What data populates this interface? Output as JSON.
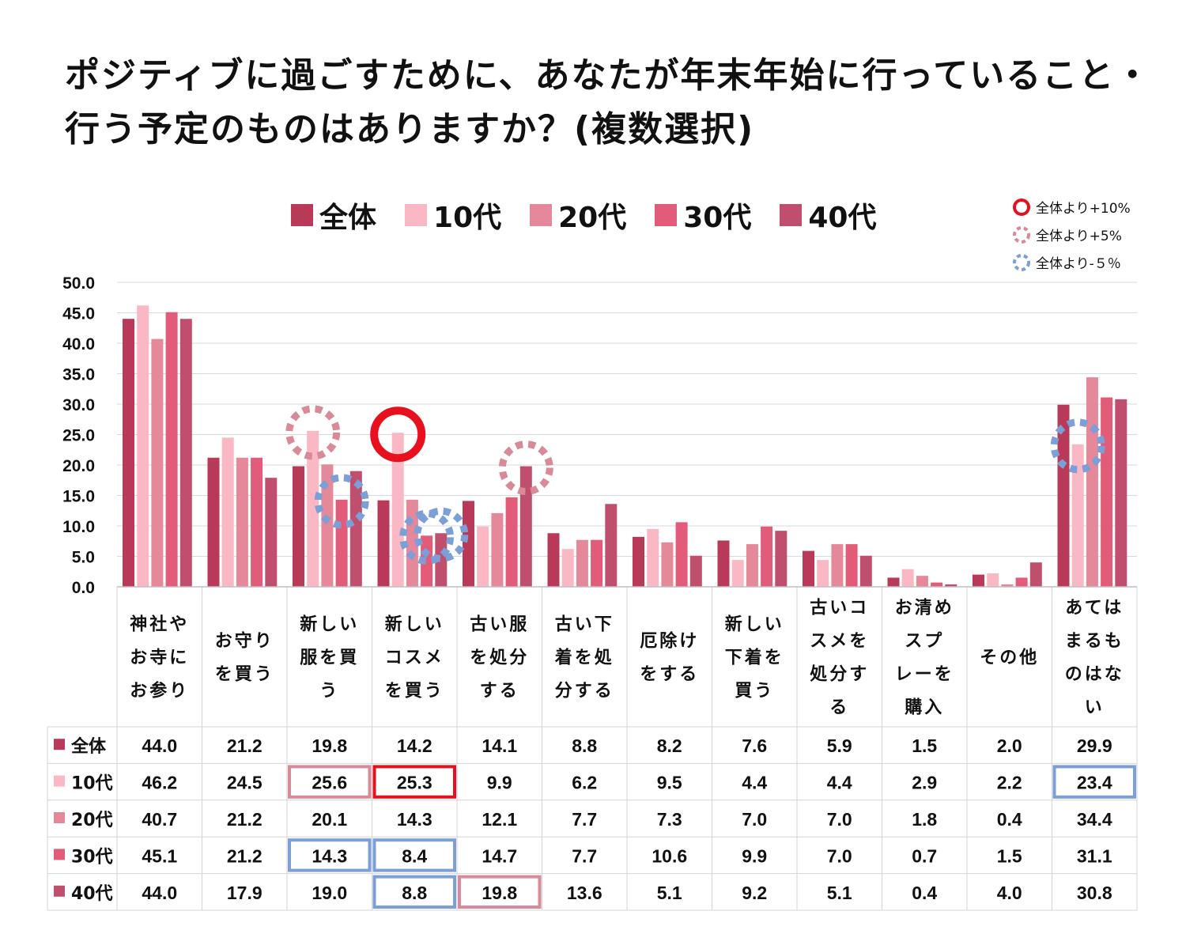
{
  "title": "ポジティブに過ごすために、あなたが年末年始に行っていること・行う予定のものはありますか？(複数選択)",
  "legend": [
    {
      "label": "全体",
      "color": "#b83a58"
    },
    {
      "label": "10代",
      "color": "#f9b8c4"
    },
    {
      "label": "20代",
      "color": "#e4889a"
    },
    {
      "label": "30代",
      "color": "#e25c79"
    },
    {
      "label": "40代",
      "color": "#c04f6e"
    }
  ],
  "key": [
    {
      "label": "全体より+10%",
      "style": "solid",
      "color": "#e8101e"
    },
    {
      "label": "全体より+5%",
      "style": "dashed",
      "color": "#d88a98"
    },
    {
      "label": "全体より-５％",
      "style": "dashed",
      "color": "#7b9fd6"
    }
  ],
  "chart_data": {
    "type": "bar",
    "ylim": [
      0,
      50
    ],
    "yticks": [
      "50.0",
      "45.0",
      "40.0",
      "35.0",
      "30.0",
      "25.0",
      "20.0",
      "15.0",
      "10.0",
      "5.0",
      "0.0"
    ],
    "categories": [
      "神社やお寺にお参り",
      "お守りを買う",
      "新しい服を買う",
      "新しいコスメを買う",
      "古い服を処分する",
      "古い下着を処分する",
      "厄除けをする",
      "新しい下着を買う",
      "古いコスメを処分する",
      "お清めスプレーを購入",
      "その他",
      "あてはまるものはない"
    ],
    "category_lines": [
      [
        "神社や",
        "お寺に",
        "お参り"
      ],
      [
        "お守り",
        "を買う"
      ],
      [
        "新しい",
        "服を買",
        "う"
      ],
      [
        "新しい",
        "コスメ",
        "を買う"
      ],
      [
        "古い服",
        "を処分",
        "する"
      ],
      [
        "古い下",
        "着を処",
        "分する"
      ],
      [
        "厄除け",
        "をする"
      ],
      [
        "新しい",
        "下着を",
        "買う"
      ],
      [
        "古いコ",
        "スメを",
        "処分す",
        "る"
      ],
      [
        "お清め",
        "スプ",
        "レーを",
        "購入"
      ],
      [
        "その他"
      ],
      [
        "あては",
        "まるも",
        "のはな",
        "い"
      ]
    ],
    "series": [
      {
        "name": "全体",
        "values": [
          44.0,
          21.2,
          19.8,
          14.2,
          14.1,
          8.8,
          8.2,
          7.6,
          5.9,
          1.5,
          2.0,
          29.9
        ]
      },
      {
        "name": "10代",
        "values": [
          46.2,
          24.5,
          25.6,
          25.3,
          9.9,
          6.2,
          9.5,
          4.4,
          4.4,
          2.9,
          2.2,
          23.4
        ]
      },
      {
        "name": "20代",
        "values": [
          40.7,
          21.2,
          20.1,
          14.3,
          12.1,
          7.7,
          7.3,
          7.0,
          7.0,
          1.8,
          0.4,
          34.4
        ]
      },
      {
        "name": "30代",
        "values": [
          45.1,
          21.2,
          14.3,
          8.4,
          14.7,
          7.7,
          10.6,
          9.9,
          7.0,
          0.7,
          1.5,
          31.1
        ]
      },
      {
        "name": "40代",
        "values": [
          44.0,
          17.9,
          19.0,
          8.8,
          19.8,
          13.6,
          5.1,
          9.2,
          5.1,
          0.4,
          4.0,
          30.8
        ]
      }
    ],
    "table_labels": [
      [
        "44.0",
        "21.2",
        "19.8",
        "14.2",
        "14.1",
        "8.8",
        "8.2",
        "7.6",
        "5.9",
        "1.5",
        "2.0",
        "29.9"
      ],
      [
        "46.2",
        "24.5",
        "25.6",
        "25.3",
        "9.9",
        "6.2",
        "9.5",
        "4.4",
        "4.4",
        "2.9",
        "2.2",
        "23.4"
      ],
      [
        "40.7",
        "21.2",
        "20.1",
        "14.3",
        "12.1",
        "7.7",
        "7.3",
        "7.0",
        "7.0",
        "1.8",
        "0.4",
        "34.4"
      ],
      [
        "45.1",
        "21.2",
        "14.3",
        "8.4",
        "14.7",
        "7.7",
        "10.6",
        "9.9",
        "7.0",
        "0.7",
        "1.5",
        "31.1"
      ],
      [
        "44.0",
        "17.9",
        "19.0",
        "8.8",
        "19.8",
        "13.6",
        "5.1",
        "9.2",
        "5.1",
        "0.4",
        "4.0",
        "30.8"
      ]
    ],
    "highlights": [
      {
        "series": 1,
        "category": 2,
        "kind": "plus5"
      },
      {
        "series": 1,
        "category": 3,
        "kind": "plus10"
      },
      {
        "series": 1,
        "category": 11,
        "kind": "minus5"
      },
      {
        "series": 3,
        "category": 2,
        "kind": "minus5"
      },
      {
        "series": 3,
        "category": 3,
        "kind": "minus5"
      },
      {
        "series": 4,
        "category": 3,
        "kind": "minus5"
      },
      {
        "series": 4,
        "category": 4,
        "kind": "plus5"
      }
    ]
  }
}
